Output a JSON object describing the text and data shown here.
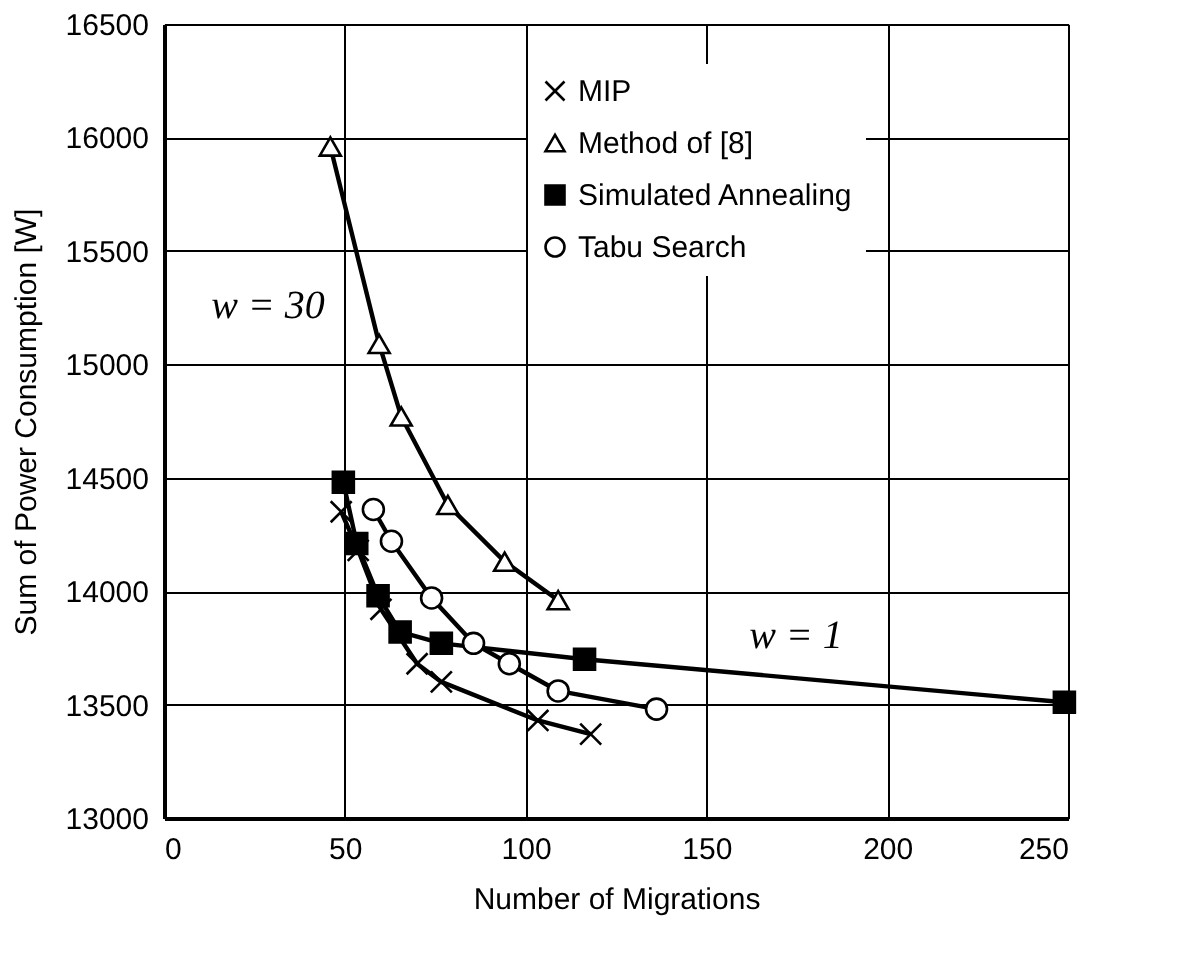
{
  "chart_data": {
    "type": "line",
    "xlabel": "Number of Migrations",
    "ylabel": "Sum of Power Consumption [W]",
    "xlim": [
      0,
      250
    ],
    "xticks": [
      0,
      50,
      100,
      150,
      200,
      250
    ],
    "ylim": [
      13000,
      16500
    ],
    "yticks": [
      13000,
      13500,
      14000,
      14500,
      15000,
      15500,
      16000,
      16500
    ],
    "grid": true,
    "legend": "top right",
    "line_style": "solid",
    "series": [
      {
        "name": "MIP",
        "color": "#000000",
        "marker": "cross",
        "x": [
          49,
          53.7,
          60,
          70,
          76.7,
          103.4,
          118
        ],
        "values": [
          14350,
          14180,
          13920,
          13680,
          13600,
          13430,
          13370
        ]
      },
      {
        "name": "Method of [8]",
        "color": "#000000",
        "marker": "triangle",
        "x": [
          46,
          59.5,
          65.6,
          78.5,
          94.2,
          109
        ],
        "values": [
          15960,
          15090,
          14770,
          14380,
          14130,
          13960
        ]
      },
      {
        "name": "Simulated Annealing",
        "color": "#000000",
        "marker": "square",
        "x": [
          49.6,
          53.3,
          59.2,
          65.3,
          76.7,
          116.3,
          249
        ],
        "values": [
          14480,
          14210,
          13980,
          13820,
          13770,
          13700,
          13510
        ]
      },
      {
        "name": "Tabu Search",
        "color": "#000000",
        "marker": "circle",
        "x": [
          57.9,
          62.9,
          74,
          85.6,
          95.5,
          109,
          136.2
        ],
        "values": [
          14360,
          14220,
          13970,
          13770,
          13680,
          13560,
          13480
        ]
      }
    ],
    "annotations": [
      "w = 30",
      "w = 1"
    ]
  }
}
